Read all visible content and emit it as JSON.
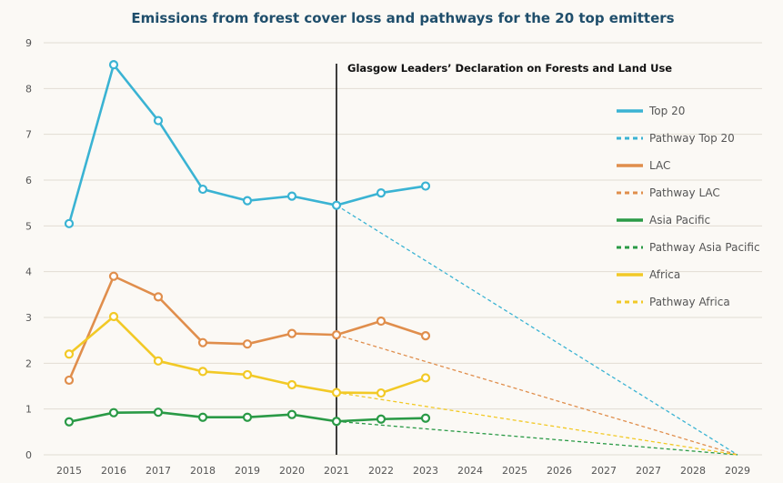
{
  "chart_data": {
    "type": "line",
    "title": "Emissions from forest cover loss and pathways for the 20 top emitters",
    "xlabel": "",
    "ylabel": "",
    "x_tick_labels": [
      "2015",
      "2016",
      "2017",
      "2018",
      "2019",
      "2020",
      "2021",
      "2022",
      "2023",
      "2024",
      "2025",
      "2026",
      "2027",
      "2027",
      "2028",
      "2029"
    ],
    "ylim": [
      0,
      9
    ],
    "y_ticks": [
      0,
      1,
      2,
      3,
      4,
      5,
      6,
      7,
      8,
      9
    ],
    "grid": true,
    "legend_position": "right",
    "annotation": {
      "text": "Glasgow Leaders’ Declaration on Forests and Land Use",
      "x_index": 6
    },
    "series": [
      {
        "name": "Top 20",
        "style": "solid",
        "color": "#3ab3d3",
        "x_index": [
          0,
          1,
          2,
          3,
          4,
          5,
          6,
          7,
          8
        ],
        "values": [
          5.05,
          8.52,
          7.3,
          5.8,
          5.55,
          5.65,
          5.45,
          5.72,
          5.87
        ]
      },
      {
        "name": "Pathway Top 20",
        "style": "dashed",
        "color": "#3ab3d3",
        "x_index": [
          6,
          15
        ],
        "values": [
          5.45,
          0
        ]
      },
      {
        "name": "LAC",
        "style": "solid",
        "color": "#e08e4c",
        "x_index": [
          0,
          1,
          2,
          3,
          4,
          5,
          6,
          7,
          8
        ],
        "values": [
          1.63,
          3.9,
          3.45,
          2.45,
          2.42,
          2.65,
          2.62,
          2.92,
          2.6
        ]
      },
      {
        "name": "Pathway LAC",
        "style": "dashed",
        "color": "#e08e4c",
        "x_index": [
          6,
          15
        ],
        "values": [
          2.62,
          0
        ]
      },
      {
        "name": "Asia Pacific",
        "style": "solid",
        "color": "#2a9a46",
        "x_index": [
          0,
          1,
          2,
          3,
          4,
          5,
          6,
          7,
          8
        ],
        "values": [
          0.72,
          0.92,
          0.93,
          0.82,
          0.82,
          0.88,
          0.73,
          0.78,
          0.8
        ]
      },
      {
        "name": "Pathway Asia Pacific",
        "style": "dashed",
        "color": "#2a9a46",
        "x_index": [
          6,
          15
        ],
        "values": [
          0.73,
          0
        ]
      },
      {
        "name": "Africa",
        "style": "solid",
        "color": "#f2c926",
        "x_index": [
          0,
          1,
          2,
          3,
          4,
          5,
          6,
          7,
          8
        ],
        "values": [
          2.2,
          3.02,
          2.05,
          1.82,
          1.75,
          1.53,
          1.36,
          1.35,
          1.68
        ]
      },
      {
        "name": "Pathway Africa",
        "style": "dashed",
        "color": "#f2c926",
        "x_index": [
          6,
          15
        ],
        "values": [
          1.36,
          0
        ]
      }
    ]
  }
}
